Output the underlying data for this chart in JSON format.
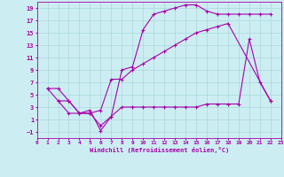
{
  "xlabel": "Windchill (Refroidissement éolien,°C)",
  "bg_color": "#cceef2",
  "grid_color": "#aad8dc",
  "line_color": "#aa00aa",
  "xlim": [
    0,
    23
  ],
  "ylim": [
    -2,
    20
  ],
  "xticks": [
    0,
    1,
    2,
    3,
    4,
    5,
    6,
    7,
    8,
    9,
    10,
    11,
    12,
    13,
    14,
    15,
    16,
    17,
    18,
    19,
    20,
    21,
    22,
    23
  ],
  "yticks": [
    -1,
    1,
    3,
    5,
    7,
    9,
    11,
    13,
    15,
    17,
    19
  ],
  "line1_x": [
    1,
    2,
    3,
    4,
    5,
    6,
    7,
    8,
    9,
    10,
    11,
    12,
    13,
    14,
    15,
    16,
    17,
    18,
    19,
    20,
    21,
    22
  ],
  "line1_y": [
    6,
    6,
    4,
    2,
    2,
    0,
    1.5,
    9,
    9.5,
    15.5,
    18,
    18.5,
    19,
    19.5,
    19.5,
    18.5,
    18,
    18,
    18,
    18,
    18,
    18
  ],
  "line2_x": [
    1,
    2,
    3,
    4,
    5,
    6,
    7,
    8,
    9,
    10,
    11,
    12,
    13,
    14,
    15,
    16,
    17,
    18,
    22
  ],
  "line2_y": [
    6,
    4,
    4,
    2,
    2,
    2.5,
    7.5,
    7.5,
    9,
    10,
    11,
    12,
    13,
    14,
    15,
    15.5,
    16,
    16.5,
    4
  ],
  "line3_x": [
    2,
    3,
    4,
    5,
    6,
    7,
    8,
    9,
    10,
    11,
    12,
    13,
    14,
    15,
    16,
    17,
    18,
    19,
    20,
    21,
    22
  ],
  "line3_y": [
    4,
    2,
    2,
    2.5,
    -0.8,
    1.5,
    3,
    3,
    3,
    3,
    3,
    3,
    3,
    3,
    3.5,
    3.5,
    3.5,
    3.5,
    14,
    7,
    4
  ]
}
